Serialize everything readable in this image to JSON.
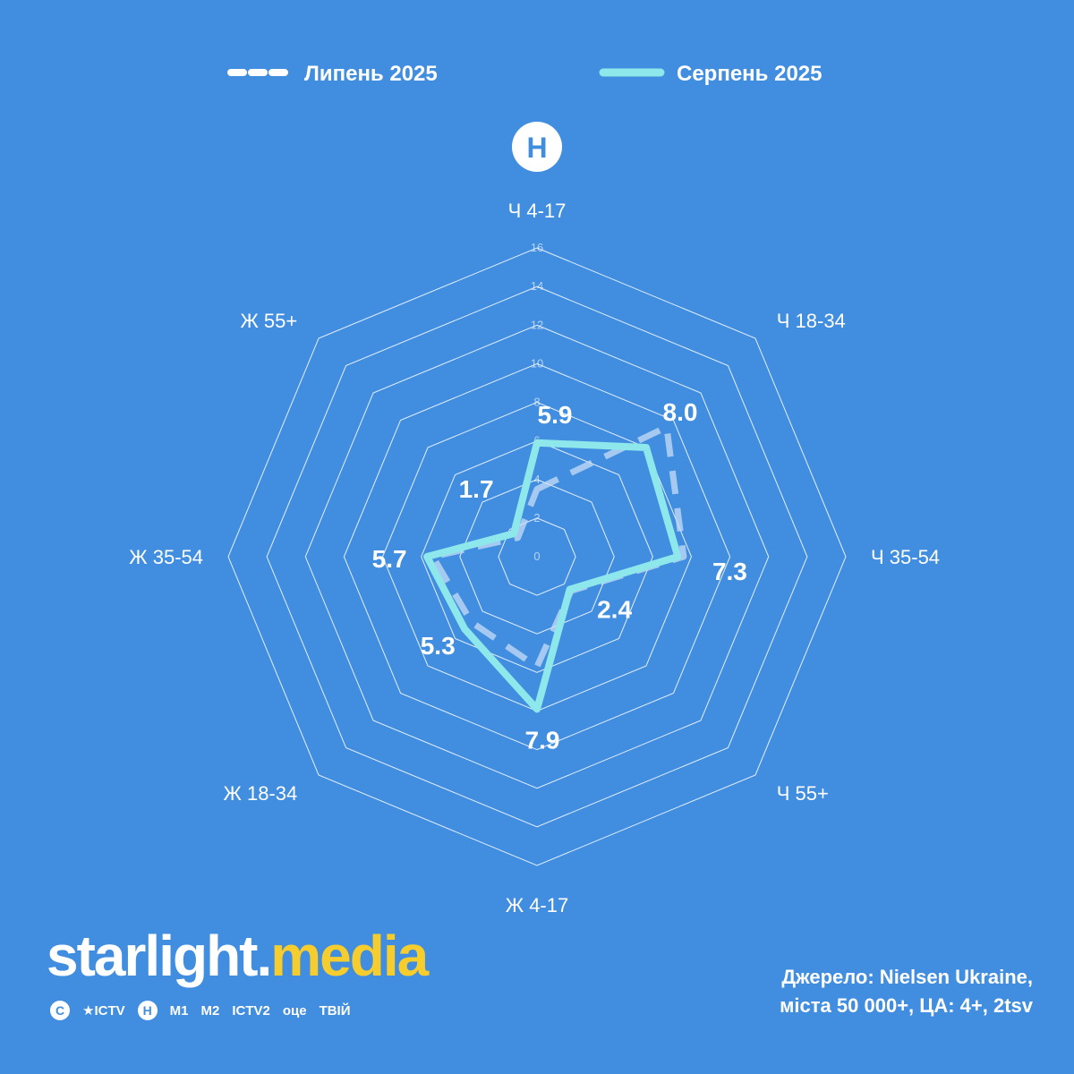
{
  "legend": {
    "series_1": "Липень 2025",
    "series_2": "Серпень 2025"
  },
  "channel_badge": "Н",
  "colors": {
    "background": "#418ee0",
    "grid": "#ffffff",
    "series_1": "#c7dcf6",
    "series_2": "#8ee7ea",
    "brand_accent": "#f6cd2c"
  },
  "chart_data": {
    "type": "radar",
    "categories": [
      "Ч 4-17",
      "Ч 18-34",
      "Ч 35-54",
      "Ч 55+",
      "Ж 4-17",
      "Ж 18-34",
      "Ж 35-54",
      "Ж 55+"
    ],
    "series": [
      {
        "name": "Липень 2025",
        "values": [
          3.5,
          9.5,
          7.6,
          2.5,
          5.7,
          4.8,
          5.4,
          1.4
        ],
        "style": "dashed"
      },
      {
        "name": "Серпень 2025",
        "values": [
          5.9,
          8.0,
          7.3,
          2.4,
          7.9,
          5.3,
          5.7,
          1.7
        ],
        "style": "solid"
      }
    ],
    "data_labels": [
      "5.9",
      "8.0",
      "7.3",
      "2.4",
      "7.9",
      "5.3",
      "5.7",
      "1.7"
    ],
    "ticks": [
      "0",
      "2",
      "4",
      "6",
      "8",
      "10",
      "12",
      "14",
      "16"
    ],
    "rlim": [
      0,
      16
    ],
    "legend_position": "top-center"
  },
  "branding": {
    "logo_part1": "starlight",
    "logo_dot": ".",
    "logo_part2": "media",
    "channels": [
      {
        "name": "С",
        "icon": "stb-icon"
      },
      {
        "name": "★ICTV",
        "icon": "ictv-icon"
      },
      {
        "name": "Н",
        "icon": "novyi-icon"
      },
      {
        "name": "M1",
        "icon": "m1-icon"
      },
      {
        "name": "M2",
        "icon": "m2-icon"
      },
      {
        "name": "ICTV2",
        "icon": "ictv2-icon"
      },
      {
        "name": "оце",
        "icon": "otse-icon"
      },
      {
        "name": "ТВІЙ",
        "icon": "tviy-icon"
      }
    ]
  },
  "source": {
    "line1": "Джерело: Nielsen Ukraine,",
    "line2": "міста 50 000+, ЦА: 4+, 2tsv"
  }
}
